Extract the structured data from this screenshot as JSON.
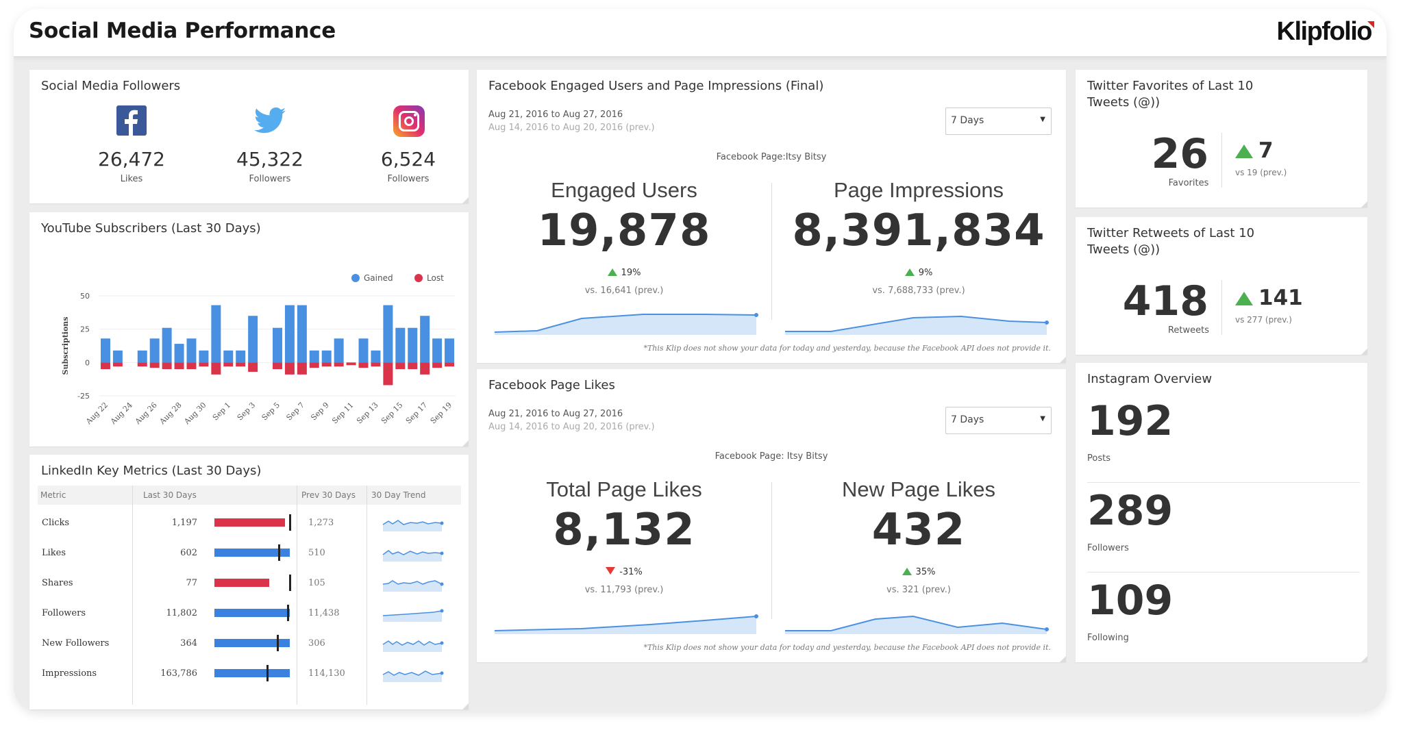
{
  "header": {
    "title": "Social Media Performance",
    "logo_text": "Klipfolio"
  },
  "followers": {
    "title": "Social Media Followers",
    "items": [
      {
        "icon": "facebook-icon",
        "value": "26,472",
        "label": "Likes",
        "color": "#3b5998"
      },
      {
        "icon": "twitter-icon",
        "value": "45,322",
        "label": "Followers",
        "color": "#55acee"
      },
      {
        "icon": "instagram-icon",
        "value": "6,524",
        "label": "Followers",
        "color": "#c13584"
      }
    ]
  },
  "youtube": {
    "title": "YouTube Subscribers (Last 30 Days)"
  },
  "chart_data": {
    "type": "bar",
    "ylabel": "Subscriptions",
    "ylim": [
      -25,
      50
    ],
    "yticks": [
      50,
      25,
      0,
      -25
    ],
    "legend_position": "top-right",
    "categories": [
      "Aug 22",
      "Aug 23",
      "Aug 24",
      "Aug 25",
      "Aug 26",
      "Aug 27",
      "Aug 28",
      "Aug 29",
      "Aug 30",
      "Aug 31",
      "Sep 1",
      "Sep 2",
      "Sep 3",
      "Sep 4",
      "Sep 5",
      "Sep 6",
      "Sep 7",
      "Sep 8",
      "Sep 9",
      "Sep 10",
      "Sep 11",
      "Sep 12",
      "Sep 13",
      "Sep 14",
      "Sep 15",
      "Sep 16",
      "Sep 17",
      "Sep 18",
      "Sep 19"
    ],
    "tick_labels": [
      "Aug 22",
      "Aug 24",
      "Aug 26",
      "Aug 28",
      "Aug 30",
      "Sep 1",
      "Sep 3",
      "Sep 5",
      "Sep 7",
      "Sep 9",
      "Sep 11",
      "Sep 13",
      "Sep 15",
      "Sep 17",
      "Sep 19"
    ],
    "series": [
      {
        "name": "Gained",
        "color": "#4a90e2",
        "values": [
          18,
          9,
          0,
          9,
          18,
          26,
          14,
          18,
          9,
          43,
          9,
          9,
          35,
          0,
          26,
          43,
          43,
          9,
          9,
          18,
          0,
          18,
          9,
          43,
          26,
          26,
          35,
          18,
          18
        ]
      },
      {
        "name": "Lost",
        "color": "#d9344a",
        "values": [
          -5,
          -3,
          0,
          -3,
          -4,
          -5,
          -5,
          -5,
          -3,
          -9,
          -3,
          -3,
          -7,
          0,
          -5,
          -9,
          -9,
          -4,
          -3,
          -3,
          -2,
          -4,
          -3,
          -17,
          -5,
          -5,
          -9,
          -4,
          -3
        ]
      }
    ]
  },
  "linkedin": {
    "title": "LinkedIn Key Metrics (Last 30 Days)",
    "headers": [
      "Metric",
      "Last 30 Days",
      "Prev 30 Days",
      "30 Day Trend"
    ],
    "rows": [
      {
        "metric": "Clicks",
        "last": "1,197",
        "prev": "1,273",
        "fill": 0.94,
        "marker": 1.0,
        "color": "#d9344a"
      },
      {
        "metric": "Likes",
        "last": "602",
        "prev": "510",
        "fill": 1.0,
        "marker": 0.85,
        "color": "#3b82e0"
      },
      {
        "metric": "Shares",
        "last": "77",
        "prev": "105",
        "fill": 0.73,
        "marker": 1.0,
        "color": "#d9344a"
      },
      {
        "metric": "Followers",
        "last": "11,802",
        "prev": "11,438",
        "fill": 1.0,
        "marker": 0.97,
        "color": "#3b82e0"
      },
      {
        "metric": "New Followers",
        "last": "364",
        "prev": "306",
        "fill": 1.0,
        "marker": 0.84,
        "color": "#3b82e0"
      },
      {
        "metric": "Impressions",
        "last": "163,786",
        "prev": "114,130",
        "fill": 1.0,
        "marker": 0.7,
        "color": "#3b82e0"
      }
    ]
  },
  "fb_engaged": {
    "title": "Facebook Engaged Users and Page Impressions (Final)",
    "date_range": "Aug 21, 2016 to Aug 27, 2016",
    "prev_range": "Aug 14, 2016 to Aug 20, 2016 (prev.)",
    "dropdown": "7 Days",
    "page_label": "Facebook Page:Itsy Bitsy",
    "left": {
      "label": "Engaged Users",
      "value": "19,878",
      "change": "19%",
      "prev": "vs. 16,641 (prev.)"
    },
    "right": {
      "label": "Page Impressions",
      "value": "8,391,834",
      "change": "9%",
      "prev": "vs. 7,688,733 (prev.)"
    },
    "footnote": "*This Klip does not show your data for today and yesterday, because the Facebook API does not provide it."
  },
  "fb_likes": {
    "title": "Facebook Page Likes",
    "date_range": "Aug 21, 2016 to Aug 27, 2016",
    "prev_range": "Aug 14, 2016 to Aug 20, 2016 (prev.)",
    "dropdown": "7 Days",
    "page_label": "Facebook Page: Itsy Bitsy",
    "left": {
      "label": "Total Page Likes",
      "value": "8,132",
      "change": "-31%",
      "prev": "vs. 11,793 (prev.)"
    },
    "right": {
      "label": "New Page Likes",
      "value": "432",
      "change": "35%",
      "prev": "vs. 321 (prev.)"
    },
    "footnote": "*This Klip does not show your data for today and yesterday, because the Facebook API does not provide it."
  },
  "tw_fav": {
    "title_line1": "Twitter Favorites of Last 10",
    "title_line2": "Tweets (@))",
    "value": "26",
    "label": "Favorites",
    "delta": "7",
    "prev": "vs 19 (prev.)"
  },
  "tw_rt": {
    "title_line1": "Twitter Retweets of Last 10",
    "title_line2": "Tweets (@))",
    "value": "418",
    "label": "Retweets",
    "delta": "141",
    "prev": "vs 277 (prev.)"
  },
  "instagram": {
    "title": "Instagram Overview",
    "stats": [
      {
        "value": "192",
        "label": "Posts"
      },
      {
        "value": "289",
        "label": "Followers"
      },
      {
        "value": "109",
        "label": "Following"
      }
    ]
  },
  "colors": {
    "accent_blue": "#4a90e2",
    "lost_red": "#d9344a",
    "up_green": "#4caf50",
    "down_red": "#e53935",
    "area_fill": "#cfe2f7"
  }
}
